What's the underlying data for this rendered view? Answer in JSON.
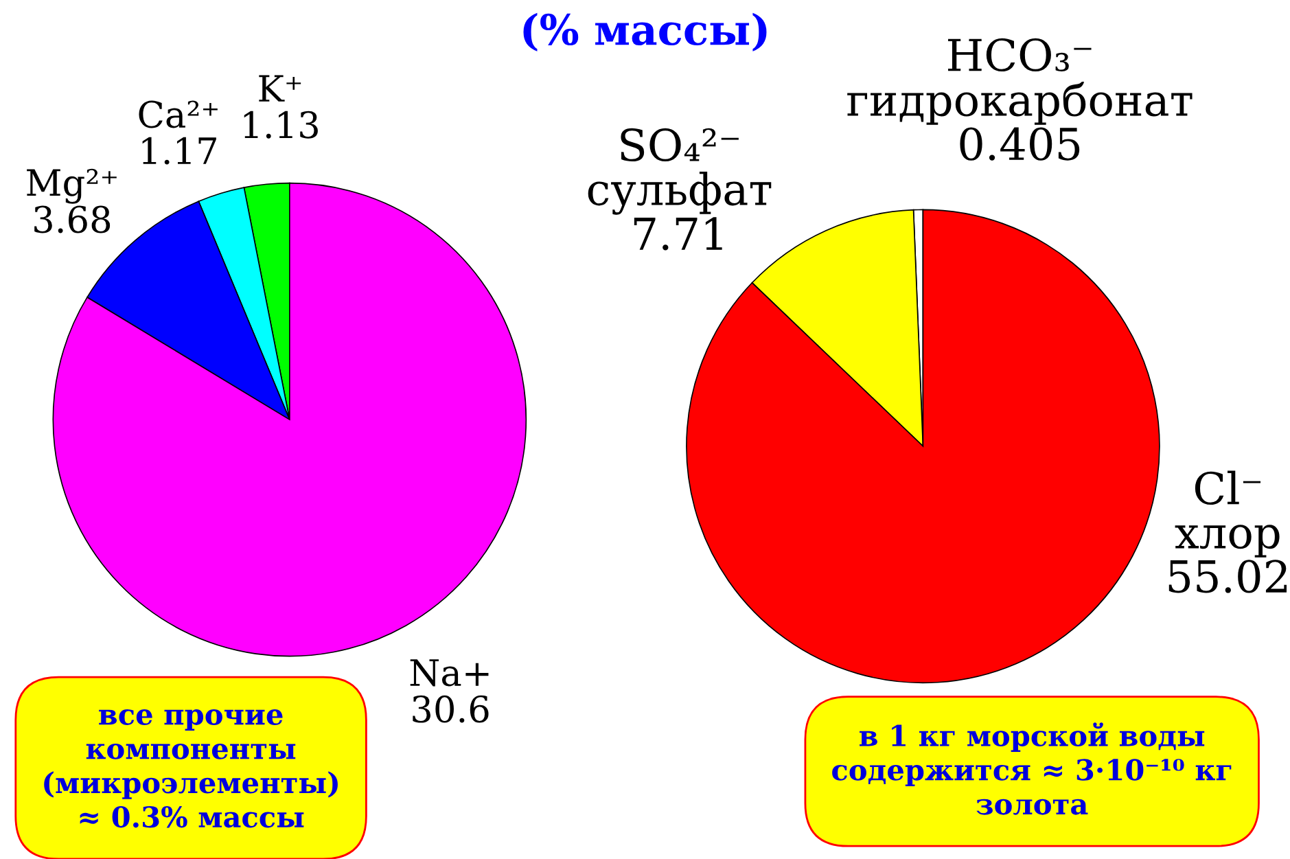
{
  "chart_data": [
    {
      "type": "pie",
      "title": "(% массы)",
      "categories": [
        "K⁺",
        "Ca²⁺",
        "Mg²⁺",
        "Na+"
      ],
      "values": [
        1.13,
        1.17,
        3.68,
        30.6
      ],
      "colors": [
        "#00ff00",
        "#00ffff",
        "#0000ff",
        "#ff00ff"
      ],
      "data_labels": true,
      "legend": false,
      "annotations": [
        "все прочие\nкомпоненты\n(микроэлементы)\n≈ 0.3% массы"
      ]
    },
    {
      "type": "pie",
      "categories": [
        "HCO₃⁻\nгидрокарбонат",
        "SO₄²⁻\nсульфат",
        "Cl⁻\nхлор"
      ],
      "values": [
        0.405,
        7.71,
        55.02
      ],
      "colors": [
        "#ffffff",
        "#ffff00",
        "#ff0000"
      ],
      "data_labels": true,
      "legend": false,
      "annotations": [
        "в 1 кг морской воды\nсодержится ≈ 3·10⁻¹⁰ кг\nзолота"
      ]
    }
  ]
}
